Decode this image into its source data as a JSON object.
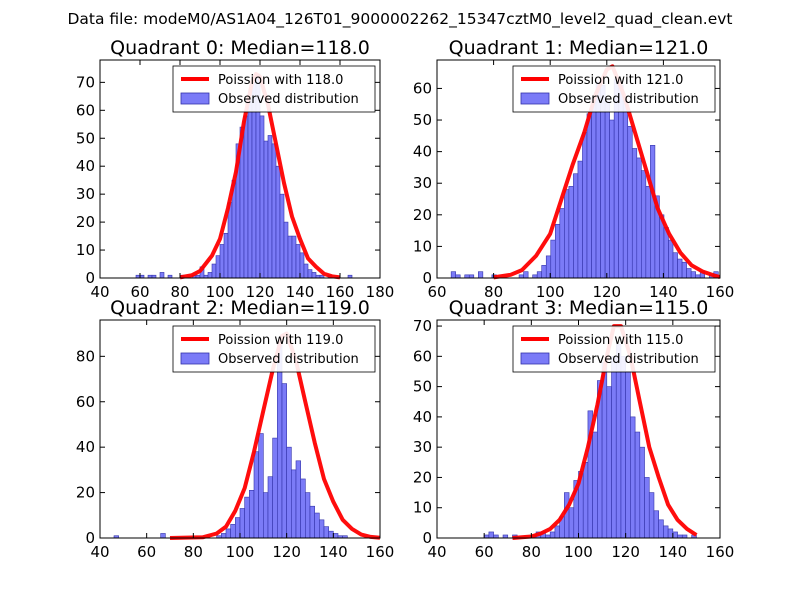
{
  "figure_title": "Data file: modeM0/AS1A04_126T01_9000002262_15347cztM0_level2_quad_clean.evt",
  "colors": {
    "hist_fill": "#7b7bf7",
    "hist_edge": "#3333aa",
    "poisson_line": "#ff0000",
    "frame": "#000000"
  },
  "chart_data": [
    {
      "type": "bar",
      "title": "Quadrant 0: Median=118.0",
      "xlim": [
        40,
        180
      ],
      "ylim": [
        0,
        78
      ],
      "xticks": [
        40,
        60,
        80,
        100,
        120,
        140,
        160,
        180
      ],
      "yticks": [
        0,
        10,
        20,
        30,
        40,
        50,
        60,
        70
      ],
      "legend": [
        "Poission with 118.0",
        "Observed distribution"
      ],
      "legend_loc": "upper right",
      "bin_width": 2,
      "bin_starts": [
        58,
        60,
        62,
        64,
        66,
        68,
        70,
        72,
        74,
        76,
        78,
        80,
        82,
        84,
        86,
        88,
        90,
        92,
        94,
        96,
        98,
        100,
        102,
        104,
        106,
        108,
        110,
        112,
        114,
        116,
        118,
        120,
        122,
        124,
        126,
        128,
        130,
        132,
        134,
        136,
        138,
        140,
        142,
        144,
        146,
        148,
        150,
        152,
        154,
        156,
        158,
        160,
        162,
        164
      ],
      "counts": [
        1,
        1,
        0,
        1,
        1,
        0,
        2,
        0,
        1,
        0,
        0,
        1,
        0,
        0,
        1,
        1,
        4,
        1,
        2,
        5,
        8,
        12,
        16,
        27,
        35,
        48,
        54,
        58,
        64,
        70,
        73,
        58,
        49,
        51,
        48,
        40,
        30,
        20,
        15,
        15,
        12,
        9,
        5,
        3,
        2,
        1,
        1,
        0,
        1,
        0,
        0,
        0,
        0,
        1
      ],
      "poisson_lambda": 118.0,
      "poisson_points": [
        [
          80,
          0.2
        ],
        [
          86,
          1
        ],
        [
          90,
          2.5
        ],
        [
          96,
          8
        ],
        [
          100,
          14
        ],
        [
          104,
          25
        ],
        [
          108,
          38
        ],
        [
          112,
          56
        ],
        [
          116,
          70
        ],
        [
          118,
          73
        ],
        [
          120,
          72
        ],
        [
          124,
          62
        ],
        [
          128,
          48
        ],
        [
          132,
          34
        ],
        [
          136,
          22
        ],
        [
          140,
          14
        ],
        [
          144,
          7
        ],
        [
          148,
          4
        ],
        [
          152,
          1.5
        ],
        [
          156,
          0.6
        ],
        [
          160,
          0.2
        ]
      ]
    },
    {
      "type": "bar",
      "title": "Quadrant 1: Median=121.0",
      "xlim": [
        60,
        160
      ],
      "ylim": [
        0,
        69
      ],
      "xticks": [
        60,
        80,
        100,
        120,
        140,
        160
      ],
      "yticks": [
        0,
        10,
        20,
        30,
        40,
        50,
        60
      ],
      "legend": [
        "Poission with 121.0",
        "Observed distribution"
      ],
      "legend_loc": "upper right",
      "bin_width": 1.6,
      "bin_starts": [
        65,
        66.6,
        68.2,
        69.8,
        71.4,
        73,
        74.6,
        76.2,
        77.8,
        79.4,
        81,
        82.6,
        84.2,
        85.8,
        87.4,
        89,
        90.6,
        92.2,
        93.8,
        95.4,
        97,
        98.6,
        100.2,
        101.8,
        103.4,
        105,
        106.6,
        108.2,
        109.8,
        111.4,
        113,
        114.6,
        116.2,
        117.8,
        119.4,
        121,
        122.6,
        124.2,
        125.8,
        127.4,
        129,
        130.6,
        132.2,
        133.8,
        135.4,
        137,
        138.6,
        140.2,
        141.8,
        143.4,
        145,
        146.6,
        148.2,
        149.8,
        151.4,
        153,
        154.6,
        156.2,
        157.8
      ],
      "counts": [
        2,
        1,
        0,
        1,
        1,
        0,
        2,
        0,
        0,
        1,
        0,
        0,
        0,
        0,
        0,
        1,
        2,
        0,
        1,
        2,
        4,
        7,
        12,
        17,
        22,
        28,
        29,
        33,
        37,
        46,
        52,
        57,
        62,
        61,
        56,
        50,
        63,
        61,
        56,
        48,
        41,
        38,
        34,
        29,
        42,
        26,
        20,
        16,
        12,
        8,
        6,
        5,
        3,
        2,
        1,
        2,
        0,
        1,
        2
      ],
      "poisson_lambda": 121.0,
      "poisson_points": [
        [
          80,
          0.2
        ],
        [
          86,
          1
        ],
        [
          90,
          2.5
        ],
        [
          95,
          7
        ],
        [
          100,
          14
        ],
        [
          104,
          25
        ],
        [
          108,
          36
        ],
        [
          112,
          46
        ],
        [
          116,
          58
        ],
        [
          120,
          66
        ],
        [
          122,
          67
        ],
        [
          126,
          58
        ],
        [
          130,
          46
        ],
        [
          134,
          34
        ],
        [
          138,
          22
        ],
        [
          142,
          14
        ],
        [
          146,
          8
        ],
        [
          150,
          4
        ],
        [
          154,
          2
        ],
        [
          158,
          0.8
        ],
        [
          160,
          0.3
        ]
      ]
    },
    {
      "type": "bar",
      "title": "Quadrant 2: Median=119.0",
      "xlim": [
        40,
        160
      ],
      "ylim": [
        0,
        96
      ],
      "xticks": [
        40,
        60,
        80,
        100,
        120,
        140,
        160
      ],
      "yticks": [
        0,
        20,
        40,
        60,
        80
      ],
      "legend": [
        "Poission with 119.0",
        "Observed distribution"
      ],
      "legend_loc": "upper right",
      "bin_width": 2,
      "bin_starts": [
        46,
        48,
        50,
        52,
        54,
        56,
        58,
        60,
        62,
        64,
        66,
        68,
        70,
        72,
        74,
        76,
        78,
        80,
        82,
        84,
        86,
        88,
        90,
        92,
        94,
        96,
        98,
        100,
        102,
        104,
        106,
        108,
        110,
        112,
        114,
        116,
        118,
        120,
        122,
        124,
        126,
        128,
        130,
        132,
        134,
        136,
        138,
        140,
        142,
        144,
        146,
        148,
        150,
        152,
        154,
        156,
        158
      ],
      "counts": [
        1,
        0,
        0,
        0,
        0,
        0,
        0,
        0,
        0,
        0,
        2,
        0,
        0,
        0,
        0,
        0,
        0,
        0,
        0,
        0,
        0,
        0,
        1,
        2,
        4,
        6,
        9,
        13,
        18,
        21,
        38,
        46,
        20,
        27,
        44,
        86,
        68,
        40,
        30,
        34,
        26,
        20,
        14,
        11,
        8,
        5,
        3,
        2,
        1,
        1,
        0,
        0,
        0,
        0,
        0,
        0,
        0
      ],
      "poisson_lambda": 119.0,
      "poisson_points": [
        [
          70,
          0
        ],
        [
          84,
          0.3
        ],
        [
          90,
          2
        ],
        [
          94,
          5
        ],
        [
          98,
          12
        ],
        [
          102,
          22
        ],
        [
          106,
          38
        ],
        [
          110,
          56
        ],
        [
          114,
          74
        ],
        [
          118,
          89
        ],
        [
          120,
          90
        ],
        [
          124,
          78
        ],
        [
          128,
          60
        ],
        [
          132,
          42
        ],
        [
          136,
          26
        ],
        [
          140,
          16
        ],
        [
          144,
          8
        ],
        [
          148,
          4
        ],
        [
          152,
          1.5
        ],
        [
          156,
          0.5
        ],
        [
          160,
          0.1
        ]
      ]
    },
    {
      "type": "bar",
      "title": "Quadrant 3: Median=115.0",
      "xlim": [
        40,
        160
      ],
      "ylim": [
        0,
        72
      ],
      "xticks": [
        40,
        60,
        80,
        100,
        120,
        140,
        160
      ],
      "yticks": [
        0,
        10,
        20,
        30,
        40,
        50,
        60,
        70
      ],
      "legend": [
        "Poission with 115.0",
        "Observed distribution"
      ],
      "legend_loc": "upper right",
      "bin_width": 2,
      "bin_starts": [
        60,
        62,
        64,
        66,
        68,
        70,
        72,
        74,
        76,
        78,
        80,
        82,
        84,
        86,
        88,
        90,
        92,
        94,
        96,
        98,
        100,
        102,
        104,
        106,
        108,
        110,
        112,
        114,
        116,
        118,
        120,
        122,
        124,
        126,
        128,
        130,
        132,
        134,
        136,
        138,
        140,
        142,
        144,
        146,
        148
      ],
      "counts": [
        1,
        2,
        1,
        0,
        1,
        0,
        1,
        0,
        0,
        0,
        1,
        2,
        2,
        1,
        2,
        4,
        7,
        15,
        10,
        19,
        22,
        25,
        42,
        35,
        52,
        58,
        50,
        60,
        64,
        60,
        55,
        40,
        35,
        30,
        20,
        15,
        9,
        6,
        4,
        3,
        2,
        1,
        1,
        0,
        1
      ],
      "poisson_lambda": 115.0,
      "poisson_points": [
        [
          72,
          0
        ],
        [
          80,
          0.5
        ],
        [
          84,
          1.5
        ],
        [
          88,
          3
        ],
        [
          92,
          6
        ],
        [
          96,
          11
        ],
        [
          100,
          18
        ],
        [
          104,
          30
        ],
        [
          108,
          44
        ],
        [
          112,
          60
        ],
        [
          115,
          70
        ],
        [
          118,
          70
        ],
        [
          122,
          60
        ],
        [
          126,
          45
        ],
        [
          130,
          30
        ],
        [
          134,
          20
        ],
        [
          138,
          11
        ],
        [
          142,
          6
        ],
        [
          146,
          3
        ],
        [
          150,
          1
        ]
      ]
    }
  ]
}
